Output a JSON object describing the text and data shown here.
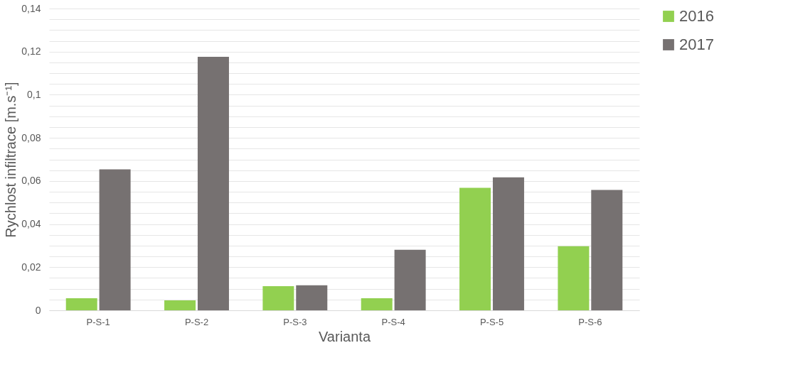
{
  "chart_data": {
    "type": "bar",
    "xlabel": "Varianta",
    "ylabel": "Rychlost infiltrace [m.s⁻¹]",
    "categories": [
      "P-S-1",
      "P-S-2",
      "P-S-3",
      "P-S-4",
      "P-S-5",
      "P-S-6"
    ],
    "series": [
      {
        "name": "2016",
        "color": "#92d050",
        "values": [
          0.0056,
          0.0046,
          0.0112,
          0.0056,
          0.0568,
          0.0297
        ]
      },
      {
        "name": "2017",
        "color": "#767171",
        "values": [
          0.0654,
          0.1176,
          0.0116,
          0.0281,
          0.0617,
          0.0558
        ]
      }
    ],
    "ylim": [
      0,
      0.14
    ],
    "yticks": [
      {
        "value": 0,
        "label": "0"
      },
      {
        "value": 0.005,
        "label": null
      },
      {
        "value": 0.01,
        "label": null
      },
      {
        "value": 0.015,
        "label": null
      },
      {
        "value": 0.02,
        "label": "0,02"
      },
      {
        "value": 0.025,
        "label": null
      },
      {
        "value": 0.03,
        "label": null
      },
      {
        "value": 0.035,
        "label": null
      },
      {
        "value": 0.04,
        "label": "0,04"
      },
      {
        "value": 0.045,
        "label": null
      },
      {
        "value": 0.05,
        "label": null
      },
      {
        "value": 0.055,
        "label": null
      },
      {
        "value": 0.06,
        "label": "0,06"
      },
      {
        "value": 0.065,
        "label": null
      },
      {
        "value": 0.07,
        "label": null
      },
      {
        "value": 0.075,
        "label": null
      },
      {
        "value": 0.08,
        "label": "0,08"
      },
      {
        "value": 0.085,
        "label": null
      },
      {
        "value": 0.09,
        "label": null
      },
      {
        "value": 0.095,
        "label": null
      },
      {
        "value": 0.1,
        "label": "0,1"
      },
      {
        "value": 0.105,
        "label": null
      },
      {
        "value": 0.11,
        "label": null
      },
      {
        "value": 0.115,
        "label": null
      },
      {
        "value": 0.12,
        "label": "0,12"
      },
      {
        "value": 0.125,
        "label": null
      },
      {
        "value": 0.13,
        "label": null
      },
      {
        "value": 0.135,
        "label": null
      },
      {
        "value": 0.14,
        "label": "0,14"
      }
    ],
    "grid": "y",
    "legend": "right"
  }
}
